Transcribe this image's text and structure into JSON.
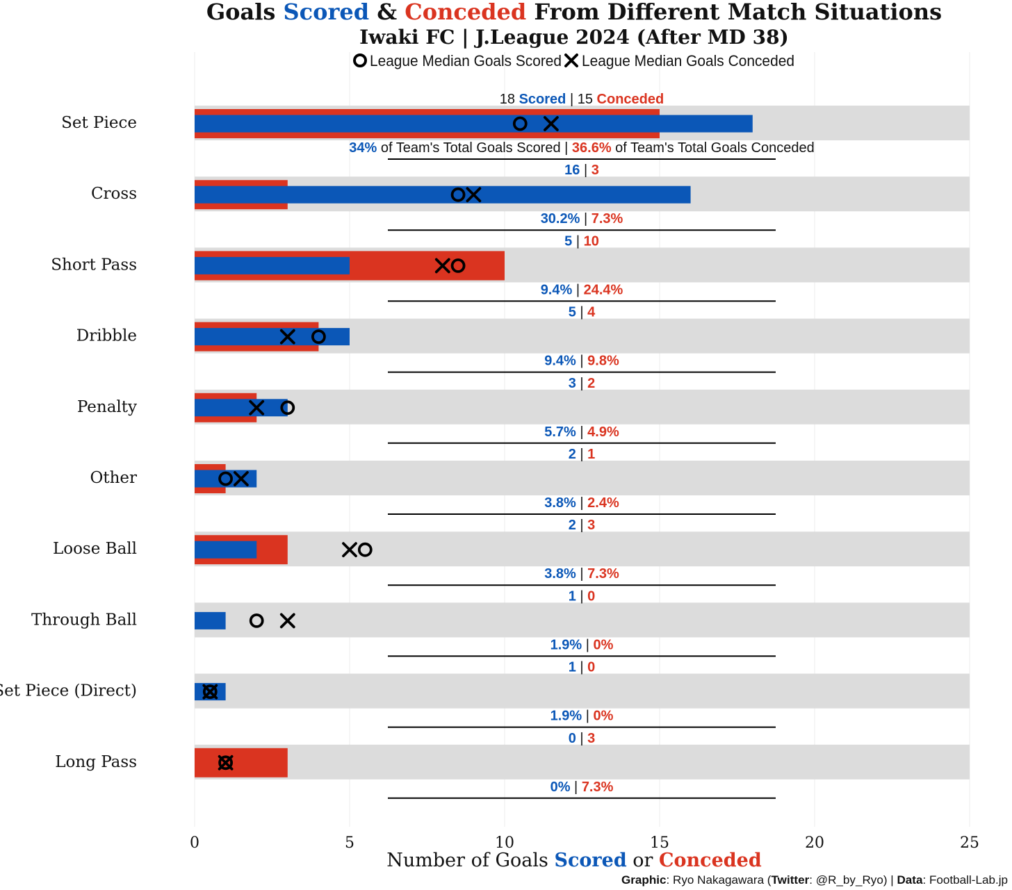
{
  "title": {
    "part1": "Goals ",
    "scored_word": "Scored",
    "part2": " & ",
    "conceded_word": "Conceded",
    "part3": " From Different Match Situations",
    "subtitle": "Iwaki FC | J.League 2024 (After MD 38)"
  },
  "legend": {
    "median_scored": "League Median Goals Scored",
    "median_conceded": "League Median Goals Conceded",
    "position": "top-center"
  },
  "colors": {
    "scored": "#0b57b7",
    "conceded": "#da3420",
    "band": "#dcdcdc",
    "text": "#111111"
  },
  "labels": {
    "scored_word": "Scored",
    "conceded_word": "Conceded",
    "pct_scored_suffix": " of Team's Total Goals Scored",
    "pct_conceded_suffix": " of Team's Total Goals Conceded",
    "separator": " | "
  },
  "xaxis": {
    "label_part1": "Number of Goals ",
    "label_scored": "Scored",
    "label_part2": " or ",
    "label_conceded": "Conceded"
  },
  "caption": {
    "graphic_label": "Graphic",
    "graphic_value": ": Ryo Nakagawara (",
    "twitter_label": "Twitter",
    "twitter_value": ": @R_by_Ryo) | ",
    "data_label": "Data",
    "data_value": ": Football-Lab.jp"
  },
  "chart_data": {
    "type": "bar",
    "title": "Goals Scored & Conceded From Different Match Situations",
    "subtitle": "Iwaki FC | J.League 2024 (After MD 38)",
    "xlabel": "Number of Goals Scored or Conceded",
    "ylabel": "",
    "xlim": [
      0,
      25
    ],
    "xticks": [
      "0",
      "5",
      "10",
      "15",
      "20",
      "25"
    ],
    "xtick_values": [
      0,
      5,
      10,
      15,
      20,
      25
    ],
    "categories": [
      "Set Piece",
      "Cross",
      "Short Pass",
      "Dribble",
      "Penalty",
      "Other",
      "Loose Ball",
      "Through Ball",
      "Set Piece (Direct)",
      "Long Pass"
    ],
    "series": [
      {
        "name": "Scored",
        "values": [
          18,
          16,
          5,
          5,
          3,
          2,
          2,
          1,
          1,
          0
        ]
      },
      {
        "name": "Conceded",
        "values": [
          15,
          3,
          10,
          4,
          2,
          1,
          3,
          0,
          0,
          3
        ]
      },
      {
        "name": "League Median Goals Scored",
        "values": [
          10.5,
          8.5,
          8.5,
          4,
          3,
          1,
          5.5,
          2,
          0.5,
          1
        ]
      },
      {
        "name": "League Median Goals Conceded",
        "values": [
          11.5,
          9,
          8,
          3,
          2,
          1.5,
          5,
          3,
          0.5,
          1
        ]
      }
    ],
    "pct_scored": [
      "34%",
      "30.2%",
      "9.4%",
      "9.4%",
      "5.7%",
      "3.8%",
      "3.8%",
      "1.9%",
      "1.9%",
      "0%"
    ],
    "pct_conceded": [
      "36.6%",
      "7.3%",
      "24.4%",
      "9.8%",
      "4.9%",
      "2.4%",
      "7.3%",
      "0%",
      "0%",
      "7.3%"
    ]
  }
}
